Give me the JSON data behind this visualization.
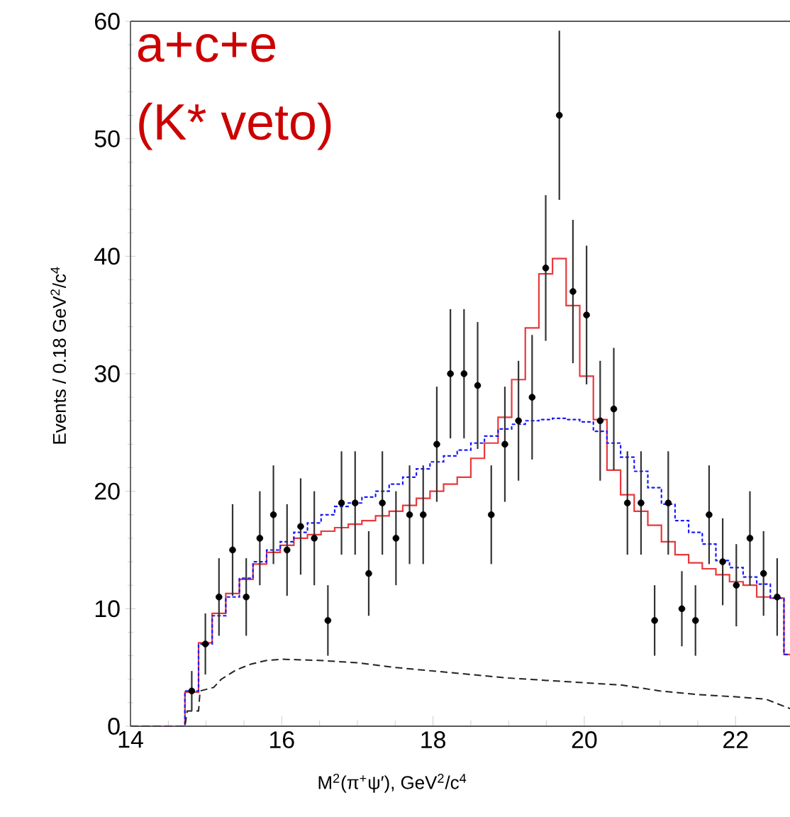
{
  "chart_data": {
    "type": "scatter",
    "xlabel": "M$^{2}$(π$^{+}$ψ′), GeV$^{2}$/c$^{4}$",
    "ylabel": "Events / 0.18 GeV$^{2}$/c$^{4}$",
    "annotations": [
      "a+c+e",
      "(K* veto)"
    ],
    "xlim": [
      14,
      22.72
    ],
    "xticks": [
      14,
      16,
      18,
      20,
      22
    ],
    "ylim": [
      0,
      60
    ],
    "yticks": [
      0,
      10,
      20,
      30,
      40,
      50,
      60
    ],
    "series": [
      {
        "type": "step",
        "color": "#e8383d",
        "line_style": "solid",
        "marker": "none",
        "x": [
          14,
          14.72,
          14.9,
          15.08,
          15.26,
          15.44,
          15.62,
          15.8,
          15.98,
          16.16,
          16.34,
          16.52,
          16.7,
          16.88,
          17.06,
          17.24,
          17.42,
          17.6,
          17.78,
          17.96,
          18.14,
          18.32,
          18.5,
          18.68,
          18.86,
          19.04,
          19.22,
          19.4,
          19.58,
          19.76,
          19.94,
          20.12,
          20.3,
          20.48,
          20.66,
          20.84,
          21.02,
          21.2,
          21.38,
          21.56,
          21.74,
          21.92,
          22.1,
          22.28,
          22.46,
          22.64,
          22.72
        ],
        "values": [
          0,
          2.9,
          7.1,
          9.6,
          11.3,
          12.5,
          13.8,
          14.8,
          15.4,
          16.0,
          16.3,
          16.6,
          16.9,
          17.2,
          17.5,
          17.9,
          18.3,
          18.8,
          19.4,
          20.0,
          20.6,
          21.2,
          22.8,
          24.1,
          26.3,
          29.5,
          33.9,
          38.5,
          39.8,
          35.8,
          29.8,
          26.1,
          21.8,
          19.7,
          18.3,
          17.1,
          15.7,
          14.6,
          13.9,
          13.4,
          12.9,
          12.3,
          12.0,
          11.0,
          10.9,
          6.1,
          6.1
        ]
      },
      {
        "type": "step",
        "color": "#1a1aff",
        "line_style": "dotted",
        "marker": "none",
        "x": [
          14,
          14.72,
          14.9,
          15.08,
          15.26,
          15.44,
          15.62,
          15.8,
          15.98,
          16.16,
          16.34,
          16.52,
          16.7,
          16.88,
          17.06,
          17.24,
          17.42,
          17.6,
          17.78,
          17.96,
          18.14,
          18.32,
          18.5,
          18.68,
          18.86,
          19.04,
          19.22,
          19.4,
          19.58,
          19.76,
          19.94,
          20.12,
          20.3,
          20.48,
          20.66,
          20.84,
          21.02,
          21.2,
          21.38,
          21.56,
          21.74,
          21.92,
          22.1,
          22.28,
          22.46,
          22.64,
          22.72
        ],
        "values": [
          0,
          3.0,
          7.0,
          9.4,
          11.0,
          12.6,
          14.0,
          15.0,
          15.7,
          16.5,
          17.3,
          18.0,
          18.7,
          19.0,
          19.5,
          20.0,
          20.6,
          21.2,
          21.9,
          22.5,
          23.0,
          23.5,
          24.1,
          24.7,
          25.3,
          25.7,
          26.0,
          26.1,
          26.2,
          26.1,
          25.9,
          25.1,
          24.1,
          22.9,
          21.7,
          20.3,
          18.9,
          17.5,
          16.5,
          15.5,
          14.1,
          13.5,
          12.7,
          12.1,
          10.9,
          6.1,
          6.1
        ]
      },
      {
        "type": "line",
        "color": "#222222",
        "line_style": "dashed",
        "marker": "none",
        "x": [
          14,
          14.72,
          14.75,
          14.9,
          14.92,
          15.1,
          15.2,
          15.4,
          15.6,
          15.8,
          16,
          16.5,
          17,
          17.5,
          18,
          18.5,
          19,
          19.5,
          20,
          20.5,
          21,
          21.5,
          22,
          22.4,
          22.72
        ],
        "values": [
          0,
          0,
          1.3,
          1.3,
          3.0,
          3.3,
          4.0,
          4.8,
          5.3,
          5.6,
          5.7,
          5.6,
          5.4,
          5.0,
          4.7,
          4.4,
          4.1,
          3.9,
          3.7,
          3.5,
          3.0,
          2.7,
          2.5,
          2.3,
          1.5
        ]
      },
      {
        "color": "#000000",
        "marker": "circle",
        "x": [
          14.81,
          14.99,
          15.17,
          15.35,
          15.53,
          15.71,
          15.89,
          16.07,
          16.25,
          16.43,
          16.61,
          16.79,
          16.97,
          17.15,
          17.33,
          17.51,
          17.69,
          17.87,
          18.05,
          18.23,
          18.41,
          18.59,
          18.77,
          18.95,
          19.13,
          19.31,
          19.49,
          19.67,
          19.85,
          20.03,
          20.21,
          20.39,
          20.57,
          20.75,
          20.93,
          21.11,
          21.29,
          21.47,
          21.65,
          21.83,
          22.01,
          22.19,
          22.37,
          22.55
        ],
        "values": [
          3,
          7,
          11,
          15,
          11,
          16,
          18,
          15,
          17,
          16,
          9,
          19,
          19,
          13,
          19,
          16,
          18,
          18,
          24,
          30,
          30,
          29,
          18,
          24,
          26,
          28,
          39,
          52,
          37,
          35,
          26,
          27,
          19,
          19,
          9,
          19,
          10,
          9,
          18,
          14,
          12,
          16,
          13,
          11
        ],
        "errors": [
          1.7,
          2.6,
          3.3,
          3.9,
          3.3,
          4,
          4.2,
          3.9,
          4.1,
          4,
          3,
          4.4,
          4.4,
          3.6,
          4.4,
          4,
          4.2,
          4.2,
          4.9,
          5.5,
          5.5,
          5.4,
          4.2,
          4.9,
          5.1,
          5.3,
          6.2,
          7.2,
          6.1,
          5.9,
          5.1,
          5.2,
          4.4,
          4.4,
          3,
          4.4,
          3.2,
          3,
          4.2,
          3.7,
          3.5,
          4,
          3.6,
          3.3
        ]
      }
    ]
  }
}
